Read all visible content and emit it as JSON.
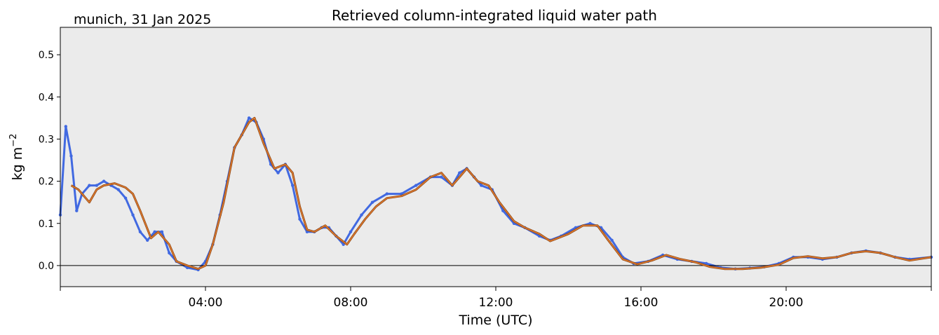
{
  "figure": {
    "location_date": "munich, 31 Jan 2025"
  },
  "chart_data": {
    "type": "line",
    "title": "Retrieved column-integrated liquid water path",
    "xlabel": "Time (UTC)",
    "ylabel": "kg m",
    "ylabel_superscript": "−2",
    "xlim": [
      "00:00",
      "24:00"
    ],
    "ylim": [
      -0.05,
      0.565
    ],
    "x_ticks": [
      {
        "hour": 0,
        "label": ""
      },
      {
        "hour": 4,
        "label": "04:00"
      },
      {
        "hour": 8,
        "label": "08:00"
      },
      {
        "hour": 12,
        "label": "12:00"
      },
      {
        "hour": 16,
        "label": "16:00"
      },
      {
        "hour": 20,
        "label": "20:00"
      },
      {
        "hour": 24,
        "label": ""
      }
    ],
    "y_ticks": [
      {
        "value": 0.0,
        "label": "0.0"
      },
      {
        "value": 0.1,
        "label": "0.1"
      },
      {
        "value": 0.2,
        "label": "0.2"
      },
      {
        "value": 0.3,
        "label": "0.3"
      },
      {
        "value": 0.4,
        "label": "0.4"
      },
      {
        "value": 0.5,
        "label": "0.5"
      }
    ],
    "zero_line": 0.0,
    "grid": false,
    "legend": "none",
    "background_color": "#ebebeb",
    "series": [
      {
        "kind": "raw-retrieval-points",
        "color": "#4169e1",
        "points": [
          [
            0.0,
            0.12
          ],
          [
            0.15,
            0.33
          ],
          [
            0.3,
            0.26
          ],
          [
            0.45,
            0.13
          ],
          [
            0.6,
            0.17
          ],
          [
            0.8,
            0.19
          ],
          [
            1.0,
            0.19
          ],
          [
            1.2,
            0.2
          ],
          [
            1.4,
            0.19
          ],
          [
            1.6,
            0.18
          ],
          [
            1.8,
            0.16
          ],
          [
            2.0,
            0.12
          ],
          [
            2.2,
            0.08
          ],
          [
            2.4,
            0.06
          ],
          [
            2.6,
            0.08
          ],
          [
            2.8,
            0.08
          ],
          [
            3.0,
            0.03
          ],
          [
            3.2,
            0.01
          ],
          [
            3.5,
            -0.005
          ],
          [
            3.8,
            -0.01
          ],
          [
            4.0,
            0.01
          ],
          [
            4.2,
            0.05
          ],
          [
            4.4,
            0.12
          ],
          [
            4.6,
            0.2
          ],
          [
            4.8,
            0.28
          ],
          [
            5.0,
            0.31
          ],
          [
            5.2,
            0.35
          ],
          [
            5.4,
            0.34
          ],
          [
            5.6,
            0.3
          ],
          [
            5.8,
            0.24
          ],
          [
            6.0,
            0.22
          ],
          [
            6.2,
            0.24
          ],
          [
            6.4,
            0.19
          ],
          [
            6.6,
            0.11
          ],
          [
            6.8,
            0.08
          ],
          [
            7.0,
            0.08
          ],
          [
            7.2,
            0.09
          ],
          [
            7.4,
            0.09
          ],
          [
            7.6,
            0.07
          ],
          [
            7.8,
            0.05
          ],
          [
            8.0,
            0.08
          ],
          [
            8.3,
            0.12
          ],
          [
            8.6,
            0.15
          ],
          [
            9.0,
            0.17
          ],
          [
            9.4,
            0.17
          ],
          [
            9.8,
            0.19
          ],
          [
            10.2,
            0.21
          ],
          [
            10.5,
            0.21
          ],
          [
            10.8,
            0.19
          ],
          [
            11.0,
            0.22
          ],
          [
            11.2,
            0.23
          ],
          [
            11.4,
            0.21
          ],
          [
            11.6,
            0.19
          ],
          [
            11.9,
            0.18
          ],
          [
            12.2,
            0.13
          ],
          [
            12.5,
            0.1
          ],
          [
            12.8,
            0.09
          ],
          [
            13.2,
            0.07
          ],
          [
            13.5,
            0.06
          ],
          [
            13.8,
            0.07
          ],
          [
            14.2,
            0.09
          ],
          [
            14.6,
            0.1
          ],
          [
            14.9,
            0.09
          ],
          [
            15.2,
            0.06
          ],
          [
            15.5,
            0.02
          ],
          [
            15.8,
            0.005
          ],
          [
            16.2,
            0.01
          ],
          [
            16.6,
            0.025
          ],
          [
            17.0,
            0.015
          ],
          [
            17.4,
            0.01
          ],
          [
            17.8,
            0.005
          ],
          [
            18.2,
            -0.005
          ],
          [
            18.6,
            -0.008
          ],
          [
            19.0,
            -0.006
          ],
          [
            19.4,
            -0.003
          ],
          [
            19.8,
            0.005
          ],
          [
            20.2,
            0.02
          ],
          [
            20.6,
            0.02
          ],
          [
            21.0,
            0.015
          ],
          [
            21.4,
            0.02
          ],
          [
            21.8,
            0.03
          ],
          [
            22.2,
            0.035
          ],
          [
            22.6,
            0.03
          ],
          [
            23.0,
            0.02
          ],
          [
            23.4,
            0.015
          ],
          [
            24.0,
            0.02
          ]
        ]
      },
      {
        "kind": "smoothed-curve",
        "color": "#e07b2f",
        "outline_color": "#8b4513",
        "points": [
          [
            0.3,
            0.19
          ],
          [
            0.5,
            0.18
          ],
          [
            0.8,
            0.15
          ],
          [
            1.0,
            0.18
          ],
          [
            1.2,
            0.19
          ],
          [
            1.5,
            0.195
          ],
          [
            1.8,
            0.185
          ],
          [
            2.0,
            0.17
          ],
          [
            2.2,
            0.13
          ],
          [
            2.5,
            0.065
          ],
          [
            2.7,
            0.08
          ],
          [
            3.0,
            0.05
          ],
          [
            3.2,
            0.01
          ],
          [
            3.5,
            0.0
          ],
          [
            3.8,
            -0.008
          ],
          [
            4.0,
            0.0
          ],
          [
            4.2,
            0.05
          ],
          [
            4.5,
            0.15
          ],
          [
            4.8,
            0.28
          ],
          [
            5.0,
            0.31
          ],
          [
            5.2,
            0.34
          ],
          [
            5.35,
            0.35
          ],
          [
            5.6,
            0.29
          ],
          [
            5.9,
            0.23
          ],
          [
            6.2,
            0.24
          ],
          [
            6.4,
            0.22
          ],
          [
            6.6,
            0.14
          ],
          [
            6.8,
            0.085
          ],
          [
            7.0,
            0.08
          ],
          [
            7.3,
            0.095
          ],
          [
            7.6,
            0.07
          ],
          [
            7.9,
            0.05
          ],
          [
            8.1,
            0.075
          ],
          [
            8.4,
            0.11
          ],
          [
            8.7,
            0.14
          ],
          [
            9.0,
            0.16
          ],
          [
            9.4,
            0.165
          ],
          [
            9.8,
            0.18
          ],
          [
            10.2,
            0.21
          ],
          [
            10.5,
            0.22
          ],
          [
            10.8,
            0.19
          ],
          [
            11.0,
            0.21
          ],
          [
            11.2,
            0.23
          ],
          [
            11.5,
            0.2
          ],
          [
            11.8,
            0.19
          ],
          [
            12.1,
            0.15
          ],
          [
            12.5,
            0.105
          ],
          [
            12.8,
            0.09
          ],
          [
            13.2,
            0.075
          ],
          [
            13.5,
            0.058
          ],
          [
            14.0,
            0.075
          ],
          [
            14.4,
            0.095
          ],
          [
            14.8,
            0.095
          ],
          [
            15.1,
            0.06
          ],
          [
            15.5,
            0.015
          ],
          [
            15.9,
            0.003
          ],
          [
            16.3,
            0.012
          ],
          [
            16.7,
            0.025
          ],
          [
            17.1,
            0.015
          ],
          [
            17.5,
            0.008
          ],
          [
            17.9,
            -0.003
          ],
          [
            18.3,
            -0.008
          ],
          [
            18.8,
            -0.008
          ],
          [
            19.3,
            -0.005
          ],
          [
            19.8,
            0.002
          ],
          [
            20.2,
            0.018
          ],
          [
            20.6,
            0.022
          ],
          [
            21.0,
            0.017
          ],
          [
            21.4,
            0.02
          ],
          [
            21.8,
            0.03
          ],
          [
            22.2,
            0.034
          ],
          [
            22.6,
            0.03
          ],
          [
            23.0,
            0.02
          ],
          [
            23.4,
            0.012
          ],
          [
            24.0,
            0.02
          ]
        ]
      }
    ]
  }
}
